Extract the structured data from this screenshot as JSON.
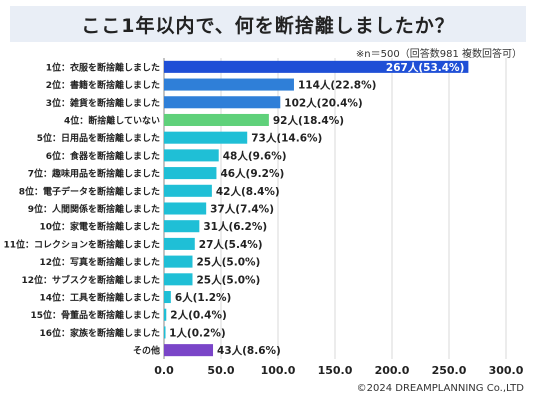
{
  "title": "ここ1年以内で、何を断捨離しましたか？",
  "note": "※n＝500（回答数981 複数回答可）",
  "copyright": "©2024 DREAMPLANNING Co.,LTD",
  "colors": {
    "dark_blue": "#1f4fd6",
    "medium_blue": "#2f7fd8",
    "green": "#5fd17a",
    "cyan": "#1fbfd6",
    "purple": "#7a45c8",
    "label_on_bar": "#ffffff",
    "text": "#222222",
    "grid": "#d9d9d9"
  },
  "chart_data": {
    "type": "bar",
    "orientation": "horizontal",
    "categories": [
      "1位：衣服を断捨離しました",
      "2位：書籍を断捨離しました",
      "3位：雑貨を断捨離しました",
      "4位：断捨離していない",
      "5位：日用品を断捨離しました",
      "6位：食器を断捨離しました",
      "7位：趣味用品を断捨離しました",
      "8位：電子データを断捨離しました",
      "9位：人間関係を断捨離しました",
      "10位：家電を断捨離しました",
      "11位：コレクションを断捨離しました",
      "12位：写真を断捨離しました",
      "12位：サブスクを断捨離しました",
      "14位：工具を断捨離しました",
      "15位：骨董品を断捨離しました",
      "16位：家族を断捨離しました",
      "その他"
    ],
    "values": [
      267,
      114,
      102,
      92,
      73,
      48,
      46,
      42,
      37,
      31,
      27,
      25,
      25,
      6,
      2,
      1,
      43
    ],
    "data_labels": [
      "267人(53.4%)",
      "114人(22.8%)",
      "102人(20.4%)",
      "92人(18.4%)",
      "73人(14.6%)",
      "48人(9.6%)",
      "46人(9.2%)",
      "42人(8.4%)",
      "37人(7.4%)",
      "31人(6.2%)",
      "27人(5.4%)",
      "25人(5.0%)",
      "25人(5.0%)",
      "6人(1.2%)",
      "2人(0.4%)",
      "1人(0.2%)",
      "43人(8.6%)"
    ],
    "bar_colors": [
      "dark_blue",
      "medium_blue",
      "medium_blue",
      "green",
      "cyan",
      "cyan",
      "cyan",
      "cyan",
      "cyan",
      "cyan",
      "cyan",
      "cyan",
      "cyan",
      "cyan",
      "cyan",
      "cyan",
      "purple"
    ],
    "xticks": [
      "0.0",
      "50.0",
      "100.0",
      "150.0",
      "200.0",
      "250.0",
      "300.0"
    ],
    "xlim": [
      0,
      300
    ],
    "xlabel": "",
    "ylabel": "",
    "grid": true
  }
}
